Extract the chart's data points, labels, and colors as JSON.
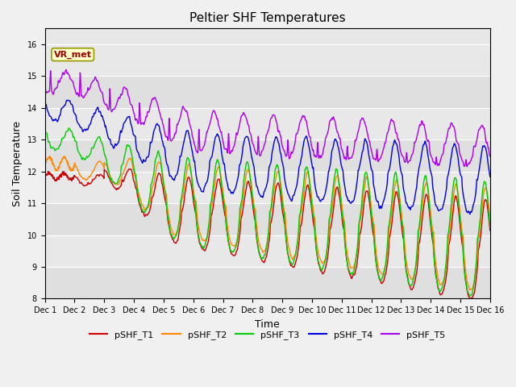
{
  "title": "Peltier SHF Temperatures",
  "xlabel": "Time",
  "ylabel": "Soil Temperature",
  "ylim": [
    8.0,
    16.5
  ],
  "yticks": [
    8.0,
    9.0,
    10.0,
    11.0,
    12.0,
    13.0,
    14.0,
    15.0,
    16.0
  ],
  "xlim": [
    0,
    15
  ],
  "xtick_labels": [
    "Dec 1",
    "Dec 2",
    "Dec 3",
    "Dec 4",
    "Dec 5",
    "Dec 6",
    "Dec 7",
    "Dec 8",
    "Dec 9",
    "Dec 10",
    "Dec 11",
    "Dec 12",
    "Dec 13",
    "Dec 14",
    "Dec 15",
    "Dec 16"
  ],
  "colors": {
    "T1": "#cc0000",
    "T2": "#ff8800",
    "T3": "#00cc00",
    "T4": "#0000dd",
    "T5": "#aa00ee"
  },
  "legend_labels": [
    "pSHF_T1",
    "pSHF_T2",
    "pSHF_T3",
    "pSHF_T4",
    "pSHF_T5"
  ],
  "annotation_text": "VR_met",
  "background_color": "#e8e8e8",
  "fig_bg_color": "#f0f0f0",
  "title_fontsize": 11,
  "axis_label_fontsize": 9,
  "tick_fontsize": 7,
  "linewidth": 1.0
}
